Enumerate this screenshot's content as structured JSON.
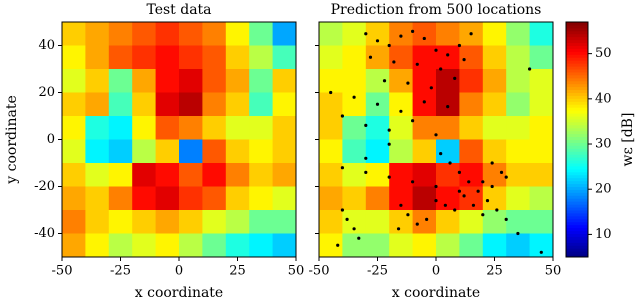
{
  "chart_data": [
    {
      "type": "heatmap",
      "title": "Test data",
      "xlabel": "x coordinate",
      "ylabel": "y coordinate",
      "xlim": [
        -50,
        50
      ],
      "ylim": [
        -50,
        50
      ],
      "xticks": [
        -50,
        -25,
        0,
        25,
        50
      ],
      "yticks": [
        -40,
        -20,
        0,
        20,
        40
      ],
      "x": [
        -45,
        -35,
        -25,
        -15,
        -5,
        5,
        15,
        25,
        35,
        45
      ],
      "y": [
        45,
        35,
        25,
        15,
        5,
        -5,
        -15,
        -25,
        -35,
        -45
      ],
      "z": [
        [
          40,
          42,
          44,
          46,
          48,
          46,
          44,
          38,
          30,
          20
        ],
        [
          38,
          42,
          46,
          48,
          50,
          48,
          46,
          40,
          34,
          28
        ],
        [
          36,
          40,
          30,
          42,
          50,
          52,
          46,
          42,
          30,
          40
        ],
        [
          40,
          42,
          28,
          40,
          52,
          54,
          44,
          40,
          28,
          38
        ],
        [
          38,
          26,
          24,
          38,
          46,
          44,
          40,
          36,
          36,
          40
        ],
        [
          36,
          24,
          22,
          34,
          40,
          18,
          46,
          40,
          38,
          40
        ],
        [
          40,
          36,
          38,
          52,
          50,
          46,
          50,
          44,
          40,
          42
        ],
        [
          42,
          40,
          44,
          50,
          52,
          48,
          46,
          40,
          38,
          36
        ],
        [
          44,
          40,
          38,
          40,
          42,
          40,
          36,
          34,
          30,
          30
        ],
        [
          42,
          38,
          34,
          36,
          38,
          34,
          30,
          26,
          24,
          22
        ]
      ]
    },
    {
      "type": "heatmap",
      "title": "Prediction from 500 locations",
      "xlabel": "x coordinate",
      "xlim": [
        -50,
        50
      ],
      "ylim": [
        -50,
        50
      ],
      "xticks": [
        -50,
        -25,
        0,
        25,
        50
      ],
      "yticks": [
        -40,
        -20,
        0,
        20,
        40
      ],
      "x": [
        -45,
        -35,
        -25,
        -15,
        -5,
        5,
        15,
        25,
        35,
        45
      ],
      "y": [
        45,
        35,
        25,
        15,
        5,
        -5,
        -15,
        -25,
        -35,
        -45
      ],
      "z": [
        [
          34,
          36,
          40,
          44,
          46,
          44,
          42,
          38,
          32,
          26
        ],
        [
          36,
          38,
          42,
          46,
          50,
          50,
          46,
          40,
          34,
          30
        ],
        [
          38,
          38,
          34,
          42,
          50,
          54,
          48,
          42,
          34,
          36
        ],
        [
          40,
          38,
          30,
          38,
          50,
          54,
          44,
          40,
          32,
          36
        ],
        [
          40,
          30,
          26,
          36,
          44,
          44,
          40,
          36,
          36,
          38
        ],
        [
          38,
          28,
          24,
          34,
          40,
          22,
          46,
          40,
          38,
          38
        ],
        [
          40,
          36,
          38,
          50,
          52,
          48,
          50,
          44,
          40,
          40
        ],
        [
          42,
          40,
          44,
          50,
          54,
          50,
          48,
          40,
          36,
          34
        ],
        [
          40,
          36,
          36,
          40,
          44,
          40,
          36,
          32,
          30,
          30
        ],
        [
          38,
          32,
          32,
          36,
          38,
          34,
          30,
          24,
          22,
          24
        ]
      ],
      "points_color": "#000000",
      "points_x": [
        -30,
        -25,
        -20,
        -15,
        -10,
        -5,
        0,
        5,
        10,
        15,
        -28,
        -18,
        -8,
        2,
        12,
        -22,
        -12,
        -2,
        8,
        -35,
        -25,
        -15,
        -5,
        5,
        -30,
        -20,
        -10,
        0,
        -40,
        -30,
        -20,
        -10,
        0,
        10,
        20,
        30,
        2,
        6,
        10,
        14,
        18,
        0,
        4,
        8,
        12,
        16,
        20,
        24,
        -4,
        -8,
        -12,
        -16,
        -40,
        -38,
        -35,
        -33,
        -42,
        24,
        28,
        22,
        26,
        30,
        -20,
        -30,
        -15,
        40,
        -45,
        -40,
        35,
        45
      ],
      "points_y": [
        45,
        42,
        40,
        44,
        46,
        43,
        38,
        36,
        40,
        45,
        35,
        33,
        32,
        30,
        34,
        25,
        24,
        22,
        26,
        18,
        15,
        12,
        16,
        14,
        6,
        4,
        8,
        2,
        -12,
        -14,
        -16,
        -18,
        -20,
        -22,
        -18,
        -16,
        -6,
        -10,
        -14,
        -18,
        -22,
        -26,
        -28,
        -30,
        -24,
        -28,
        -32,
        -20,
        -34,
        -36,
        -32,
        -38,
        -30,
        -34,
        -38,
        -42,
        -45,
        -10,
        -14,
        -26,
        -30,
        -34,
        -2,
        -8,
        -28,
        30,
        20,
        10,
        -40,
        -48
      ]
    }
  ],
  "colorbar": {
    "label": "wε [dB]",
    "colormap": "jet",
    "clim": [
      5,
      57
    ],
    "ticks": [
      10,
      20,
      30,
      40,
      50
    ]
  }
}
